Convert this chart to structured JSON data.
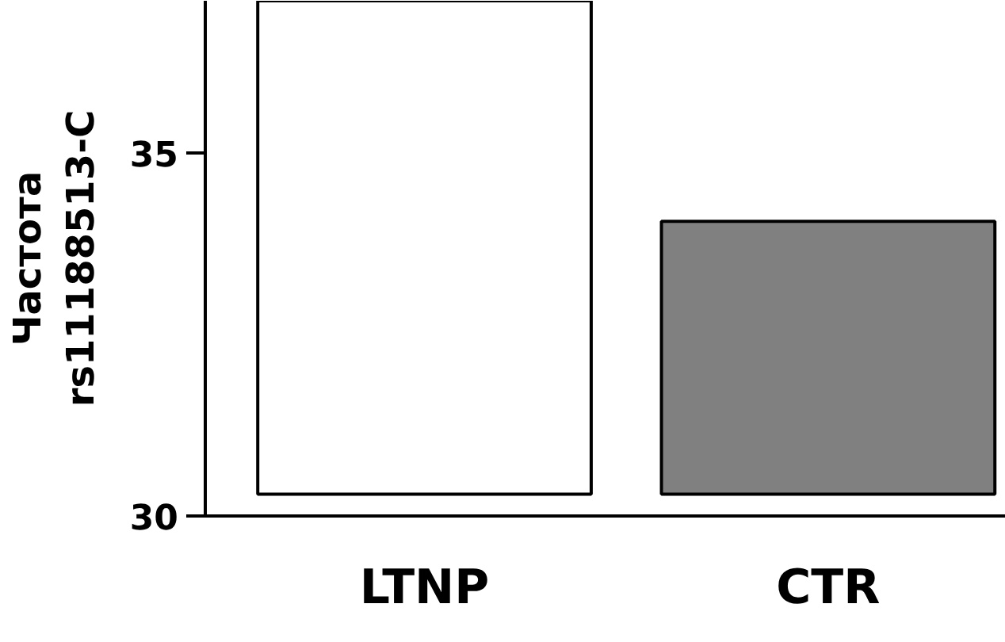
{
  "chart_data": {
    "type": "bar",
    "ylabel": "Частота\nrs11188513-C",
    "categories": [
      "LTNP",
      "CTR"
    ],
    "base": [
      30.3,
      30.3
    ],
    "values": [
      6.8,
      3.76
    ],
    "colors": [
      "#ffffff",
      "#808080"
    ],
    "ylim": [
      30,
      37.1
    ],
    "yticks": [
      30,
      35
    ]
  }
}
